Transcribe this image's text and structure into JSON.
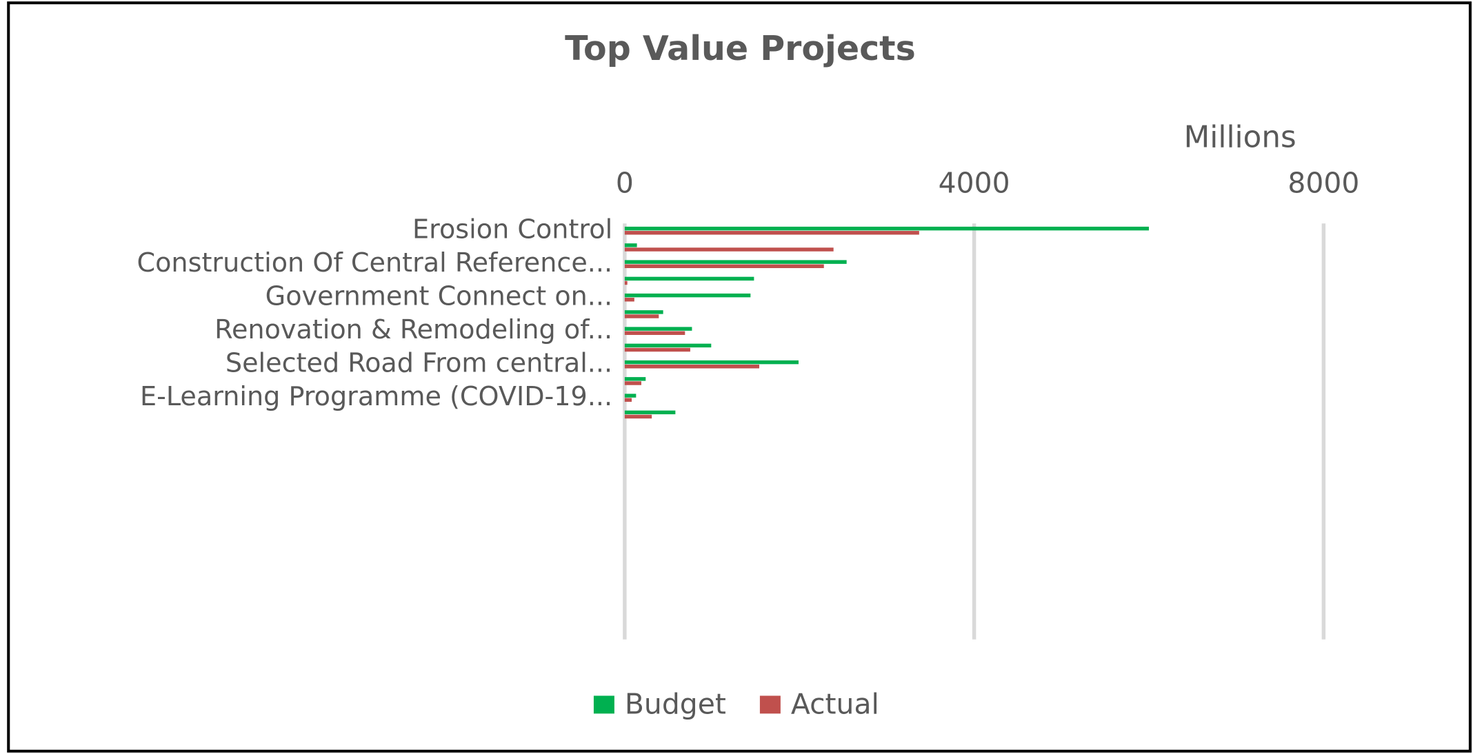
{
  "chart_data": {
    "type": "barh",
    "title": "Top Value Projects",
    "xlabel": "Millions",
    "categories": [
      "Erosion Control",
      null,
      "Construction Of Central Reference...",
      null,
      "Government Connect on...",
      null,
      "Renovation & Remodeling of...",
      null,
      "Selected Road From central...",
      null,
      "E-Learning Programme (COVID-19...",
      null
    ],
    "series": [
      {
        "name": "Budget",
        "color": "#00b050",
        "values": [
          6000,
          140,
          2540,
          1480,
          1440,
          440,
          770,
          990,
          1990,
          240,
          130,
          580
        ]
      },
      {
        "name": "Actual",
        "color": "#c0504d",
        "values": [
          3370,
          2390,
          2280,
          30,
          110,
          390,
          690,
          750,
          1540,
          190,
          80,
          310
        ]
      }
    ],
    "xlim": [
      0,
      8000
    ],
    "xticks": [
      0,
      4000,
      8000
    ],
    "grid": true,
    "legend": "bottom"
  }
}
